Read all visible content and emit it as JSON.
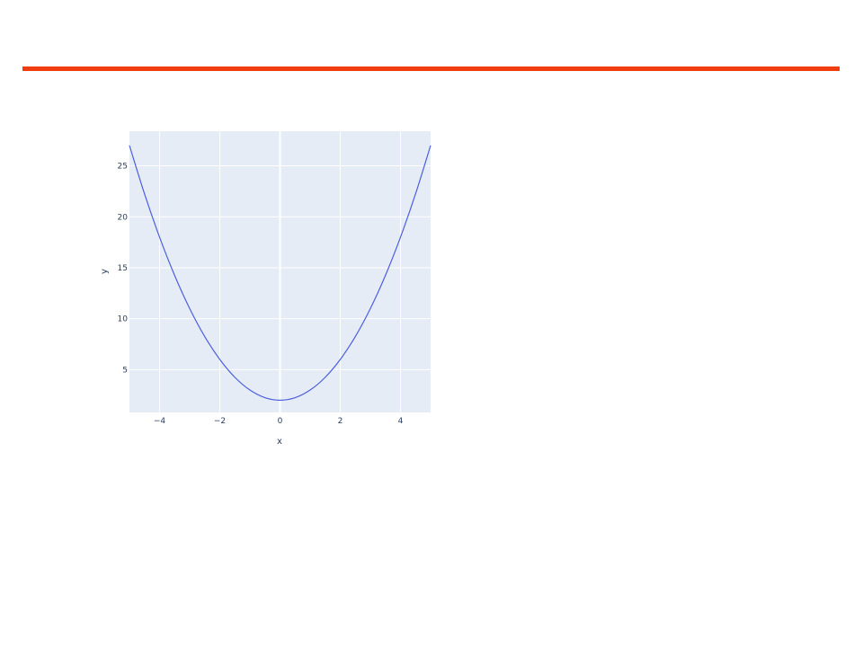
{
  "theme": {
    "accent_color": "#f03c0f",
    "plot_background": "#e5ecf6",
    "gridline_color": "#ffffff",
    "line_color": "#4c5fe0",
    "text_color": "#2a3f5f"
  },
  "chart_data": {
    "type": "line",
    "title": "",
    "xlabel": "x",
    "ylabel": "y",
    "xlim": [
      -5,
      5
    ],
    "ylim": [
      0.8,
      28.4
    ],
    "grid": true,
    "legend": "none",
    "x_ticks": [
      -4,
      -2,
      0,
      2,
      4
    ],
    "x_tick_labels": [
      "−4",
      "−2",
      "0",
      "2",
      "4"
    ],
    "y_ticks": [
      5,
      10,
      15,
      20,
      25
    ],
    "y_tick_labels": [
      "5",
      "10",
      "15",
      "20",
      "25"
    ],
    "series": [
      {
        "x": [
          -5,
          -4.5,
          -4,
          -3.5,
          -3,
          -2.5,
          -2,
          -1.5,
          -1,
          -0.5,
          0,
          0.5,
          1,
          1.5,
          2,
          2.5,
          3,
          3.5,
          4,
          4.5,
          5
        ],
        "y": [
          27,
          22.25,
          18,
          14.25,
          11,
          8.25,
          6,
          4.25,
          3,
          2.25,
          2,
          2.25,
          3,
          4.25,
          6,
          8.25,
          11,
          14.25,
          18,
          22.25,
          27
        ]
      }
    ]
  }
}
